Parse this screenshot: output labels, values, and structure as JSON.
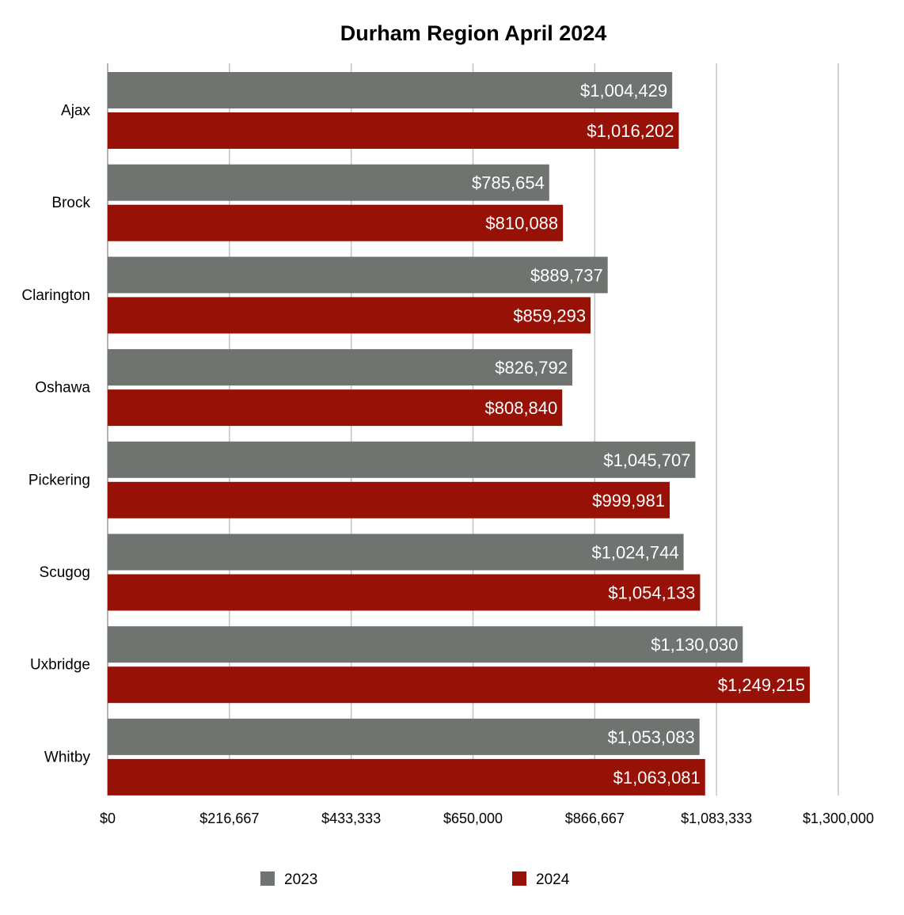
{
  "chart_data": {
    "type": "bar",
    "orientation": "horizontal",
    "title": "Durham Region April 2024",
    "xlabel": "",
    "ylabel": "",
    "xlim": [
      0,
      1300000
    ],
    "x_ticks": [
      "$0",
      "$216,667",
      "$433,333",
      "$650,000",
      "$866,667",
      "$1,083,333",
      "$1,300,000"
    ],
    "x_tick_values": [
      0,
      216667,
      433333,
      650000,
      866667,
      1083333,
      1300000
    ],
    "grid": true,
    "legend_position": "bottom",
    "categories": [
      "Ajax",
      "Brock",
      "Clarington",
      "Oshawa",
      "Pickering",
      "Scugog",
      "Uxbridge",
      "Whitby"
    ],
    "series": [
      {
        "name": "2023",
        "color": "#6f7471",
        "values": [
          1004429,
          785654,
          889737,
          826792,
          1045707,
          1024744,
          1130030,
          1053083
        ],
        "labels": [
          "$1,004,429",
          "$785,654",
          "$889,737",
          "$826,792",
          "$1,045,707",
          "$1,024,744",
          "$1,130,030",
          "$1,053,083"
        ]
      },
      {
        "name": "2024",
        "color": "#981106",
        "values": [
          1016202,
          810088,
          859293,
          808840,
          999981,
          1054133,
          1249215,
          1063081
        ],
        "labels": [
          "$1,016,202",
          "$810,088",
          "$859,293",
          "$808,840",
          "$999,981",
          "$1,054,133",
          "$1,249,215",
          "$1,063,081"
        ]
      }
    ]
  }
}
